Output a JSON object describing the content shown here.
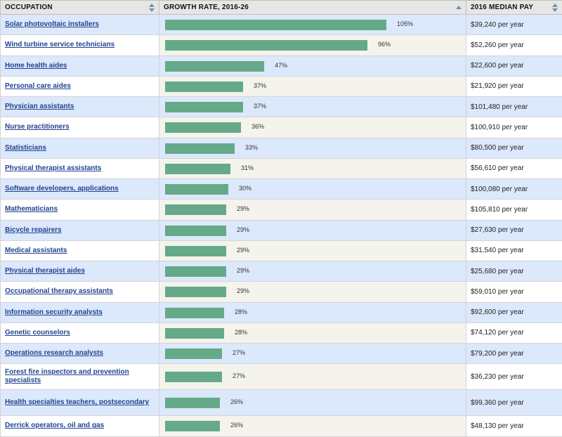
{
  "headers": {
    "occupation": "OCCUPATION",
    "growth": "GROWTH RATE, 2016-26",
    "pay": "2016 MEDIAN PAY"
  },
  "colors": {
    "bar": "#66a989",
    "row_alt": "#dce8fb",
    "link": "#22448f"
  },
  "chart_data": {
    "type": "table",
    "xlim": [
      0,
      105
    ],
    "columns": [
      "OCCUPATION",
      "GROWTH RATE, 2016-26",
      "2016 MEDIAN PAY"
    ],
    "rows": [
      {
        "occupation": "Solar photovoltaic installers",
        "growth": 105,
        "growth_label": "105%",
        "pay": "$39,240 per year"
      },
      {
        "occupation": "Wind turbine service technicians",
        "growth": 96,
        "growth_label": "96%",
        "pay": "$52,260 per year"
      },
      {
        "occupation": "Home health aides",
        "growth": 47,
        "growth_label": "47%",
        "pay": "$22,600 per year"
      },
      {
        "occupation": "Personal care aides",
        "growth": 37,
        "growth_label": "37%",
        "pay": "$21,920 per year"
      },
      {
        "occupation": "Physician assistants",
        "growth": 37,
        "growth_label": "37%",
        "pay": "$101,480 per year"
      },
      {
        "occupation": "Nurse practitioners",
        "growth": 36,
        "growth_label": "36%",
        "pay": "$100,910 per year"
      },
      {
        "occupation": "Statisticians",
        "growth": 33,
        "growth_label": "33%",
        "pay": "$80,500 per year"
      },
      {
        "occupation": "Physical therapist assistants",
        "growth": 31,
        "growth_label": "31%",
        "pay": "$56,610 per year"
      },
      {
        "occupation": "Software developers, applications",
        "growth": 30,
        "growth_label": "30%",
        "pay": "$100,080 per year"
      },
      {
        "occupation": "Mathematicians",
        "growth": 29,
        "growth_label": "29%",
        "pay": "$105,810 per year"
      },
      {
        "occupation": "Bicycle repairers",
        "growth": 29,
        "growth_label": "29%",
        "pay": "$27,630 per year"
      },
      {
        "occupation": "Medical assistants",
        "growth": 29,
        "growth_label": "29%",
        "pay": "$31,540 per year"
      },
      {
        "occupation": "Physical therapist aides",
        "growth": 29,
        "growth_label": "29%",
        "pay": "$25,680 per year"
      },
      {
        "occupation": "Occupational therapy assistants",
        "growth": 29,
        "growth_label": "29%",
        "pay": "$59,010 per year"
      },
      {
        "occupation": "Information security analysts",
        "growth": 28,
        "growth_label": "28%",
        "pay": "$92,600 per year"
      },
      {
        "occupation": "Genetic counselors",
        "growth": 28,
        "growth_label": "28%",
        "pay": "$74,120 per year"
      },
      {
        "occupation": "Operations research analysts",
        "growth": 27,
        "growth_label": "27%",
        "pay": "$79,200 per year"
      },
      {
        "occupation": "Forest fire inspectors and prevention specialists",
        "growth": 27,
        "growth_label": "27%",
        "pay": "$36,230 per year"
      },
      {
        "occupation": "Health specialties teachers, postsecondary",
        "growth": 26,
        "growth_label": "26%",
        "pay": "$99,360 per year"
      },
      {
        "occupation": "Derrick operators, oil and gas",
        "growth": 26,
        "growth_label": "26%",
        "pay": "$48,130 per year"
      }
    ]
  }
}
